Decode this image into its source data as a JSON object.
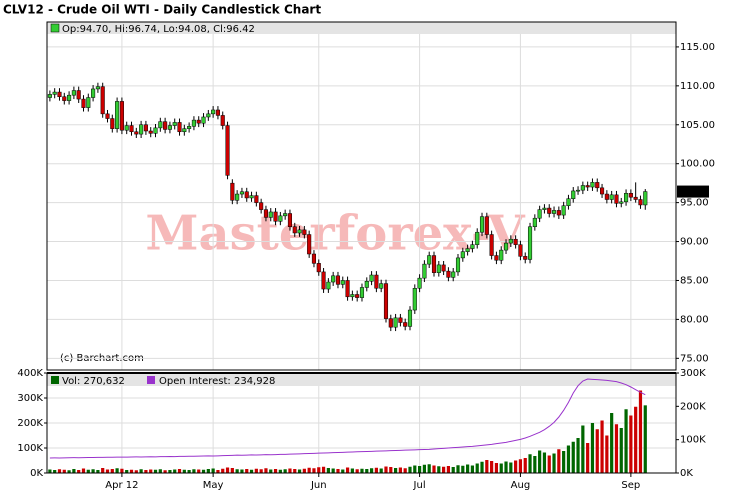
{
  "chart_data": {
    "type": "candlestick",
    "title": "CLV12 - Crude Oil WTI - Daily Candlestick Chart",
    "ohlc_legend": "Op:94.70, Hi:96.74, Lo:94.08, Cl:96.42",
    "last_price_label": "96.42",
    "watermark": "Masterforex-V",
    "credit": "(c) Barchart.com",
    "colors": {
      "up": "#33cc33",
      "down": "#cc0000",
      "volume_up": "#006600",
      "volume_down": "#cc0000"
    },
    "grid": true,
    "xlim": [
      -0.6,
      130.4
    ],
    "xticks": [
      {
        "value": 15,
        "label": "Apr 12"
      },
      {
        "value": 34,
        "label": "May"
      },
      {
        "value": 56,
        "label": "Jun"
      },
      {
        "value": 77,
        "label": "Jul"
      },
      {
        "value": 98,
        "label": "Aug"
      },
      {
        "value": 121,
        "label": "Sep"
      }
    ],
    "ylim": [
      73.5,
      118.2
    ],
    "yticks": [
      {
        "value": 75,
        "label": "75.00"
      },
      {
        "value": 80,
        "label": "80.00"
      },
      {
        "value": 85,
        "label": "85.00"
      },
      {
        "value": 90,
        "label": "90.00"
      },
      {
        "value": 95,
        "label": "95.00"
      },
      {
        "value": 100,
        "label": "100.00"
      },
      {
        "value": 105,
        "label": "105.00"
      },
      {
        "value": 110,
        "label": "110.00"
      },
      {
        "value": 115,
        "label": "115.00"
      }
    ],
    "ohlc": [
      [
        108.5,
        109.4,
        108.0,
        108.9
      ],
      [
        108.9,
        109.7,
        108.4,
        109.2
      ],
      [
        109.2,
        109.7,
        108.1,
        108.6
      ],
      [
        108.6,
        109.1,
        107.6,
        108.1
      ],
      [
        108.1,
        109.3,
        107.6,
        108.8
      ],
      [
        108.8,
        109.9,
        108.3,
        109.4
      ],
      [
        109.4,
        109.9,
        107.8,
        108.3
      ],
      [
        108.3,
        108.8,
        106.7,
        107.2
      ],
      [
        107.2,
        109.0,
        106.7,
        108.5
      ],
      [
        108.5,
        110.1,
        108.0,
        109.6
      ],
      [
        109.6,
        110.4,
        109.1,
        109.9
      ],
      [
        109.9,
        110.4,
        105.9,
        106.4
      ],
      [
        106.4,
        106.9,
        105.3,
        105.8
      ],
      [
        105.8,
        106.3,
        104.0,
        104.5
      ],
      [
        104.5,
        108.5,
        104.0,
        108.0
      ],
      [
        108.0,
        108.5,
        103.8,
        104.3
      ],
      [
        104.3,
        105.4,
        103.8,
        104.9
      ],
      [
        104.9,
        105.4,
        103.6,
        104.1
      ],
      [
        104.1,
        104.6,
        103.3,
        103.8
      ],
      [
        103.8,
        105.5,
        103.3,
        105.0
      ],
      [
        105.0,
        105.5,
        103.7,
        104.2
      ],
      [
        104.2,
        104.7,
        103.4,
        103.9
      ],
      [
        103.9,
        105.1,
        103.4,
        104.6
      ],
      [
        104.6,
        105.9,
        104.1,
        105.4
      ],
      [
        105.4,
        105.9,
        103.9,
        104.4
      ],
      [
        104.4,
        105.4,
        103.9,
        104.9
      ],
      [
        104.9,
        105.8,
        104.4,
        105.3
      ],
      [
        105.3,
        105.8,
        103.6,
        104.1
      ],
      [
        104.1,
        105.0,
        103.6,
        104.5
      ],
      [
        104.5,
        105.3,
        104.0,
        104.8
      ],
      [
        104.8,
        106.1,
        104.3,
        105.6
      ],
      [
        105.6,
        106.1,
        104.7,
        105.2
      ],
      [
        105.2,
        106.5,
        104.7,
        106.0
      ],
      [
        106.0,
        106.9,
        105.5,
        106.4
      ],
      [
        106.4,
        107.4,
        105.9,
        106.9
      ],
      [
        106.9,
        107.4,
        105.7,
        106.2
      ],
      [
        106.2,
        106.7,
        104.4,
        104.9
      ],
      [
        104.9,
        105.4,
        98.0,
        98.5
      ],
      [
        97.5,
        98.0,
        94.8,
        95.3
      ],
      [
        95.3,
        96.6,
        94.8,
        96.1
      ],
      [
        96.1,
        96.9,
        95.6,
        96.4
      ],
      [
        96.4,
        96.9,
        95.1,
        95.6
      ],
      [
        95.6,
        96.4,
        95.1,
        95.9
      ],
      [
        95.9,
        96.4,
        94.5,
        95.0
      ],
      [
        95.0,
        95.5,
        93.6,
        94.1
      ],
      [
        94.1,
        94.6,
        92.6,
        93.1
      ],
      [
        93.1,
        94.3,
        92.6,
        93.8
      ],
      [
        93.8,
        94.3,
        92.1,
        92.6
      ],
      [
        92.6,
        93.8,
        92.1,
        93.3
      ],
      [
        93.3,
        94.1,
        92.8,
        93.6
      ],
      [
        93.6,
        94.1,
        91.4,
        91.9
      ],
      [
        91.9,
        92.4,
        90.6,
        91.1
      ],
      [
        91.1,
        92.0,
        90.6,
        91.5
      ],
      [
        91.5,
        92.0,
        90.4,
        90.9
      ],
      [
        90.9,
        91.4,
        87.9,
        88.4
      ],
      [
        88.4,
        88.9,
        86.7,
        87.2
      ],
      [
        87.2,
        87.7,
        85.6,
        86.1
      ],
      [
        86.1,
        86.6,
        83.4,
        83.9
      ],
      [
        83.9,
        85.3,
        83.4,
        84.8
      ],
      [
        84.8,
        86.1,
        84.3,
        85.6
      ],
      [
        85.6,
        86.1,
        84.0,
        84.5
      ],
      [
        84.5,
        85.5,
        84.0,
        85.0
      ],
      [
        85.0,
        85.5,
        82.4,
        82.9
      ],
      [
        82.9,
        83.7,
        82.4,
        83.2
      ],
      [
        83.2,
        83.7,
        82.3,
        82.8
      ],
      [
        82.8,
        84.6,
        82.3,
        84.1
      ],
      [
        84.1,
        85.4,
        83.6,
        84.9
      ],
      [
        84.9,
        86.2,
        84.4,
        85.7
      ],
      [
        85.7,
        86.2,
        83.5,
        84.0
      ],
      [
        84.0,
        85.1,
        83.5,
        84.6
      ],
      [
        84.6,
        85.1,
        79.6,
        80.1
      ],
      [
        80.1,
        80.6,
        78.5,
        79.0
      ],
      [
        79.0,
        80.7,
        78.5,
        80.2
      ],
      [
        80.2,
        80.7,
        79.1,
        79.6
      ],
      [
        79.6,
        80.1,
        78.6,
        79.1
      ],
      [
        79.1,
        81.7,
        78.6,
        81.2
      ],
      [
        81.2,
        84.5,
        80.7,
        84.0
      ],
      [
        84.0,
        85.8,
        83.5,
        85.3
      ],
      [
        85.3,
        87.6,
        84.8,
        87.1
      ],
      [
        87.1,
        88.7,
        86.6,
        88.2
      ],
      [
        88.2,
        88.7,
        85.5,
        86.0
      ],
      [
        86.0,
        87.5,
        85.5,
        87.0
      ],
      [
        87.0,
        87.5,
        85.7,
        86.2
      ],
      [
        86.2,
        86.7,
        84.9,
        85.4
      ],
      [
        85.4,
        86.6,
        84.9,
        86.1
      ],
      [
        86.1,
        88.4,
        85.6,
        87.9
      ],
      [
        87.9,
        89.2,
        87.4,
        88.7
      ],
      [
        88.7,
        89.6,
        88.2,
        89.1
      ],
      [
        89.1,
        90.1,
        88.6,
        89.6
      ],
      [
        89.6,
        91.7,
        89.1,
        91.2
      ],
      [
        91.2,
        93.7,
        90.7,
        93.2
      ],
      [
        93.2,
        93.7,
        90.4,
        90.9
      ],
      [
        90.9,
        91.4,
        87.7,
        88.2
      ],
      [
        88.2,
        88.7,
        87.1,
        87.6
      ],
      [
        87.6,
        89.4,
        87.1,
        88.9
      ],
      [
        88.9,
        90.3,
        88.4,
        89.8
      ],
      [
        89.8,
        90.8,
        89.3,
        90.3
      ],
      [
        90.3,
        90.8,
        89.1,
        89.6
      ],
      [
        89.6,
        90.1,
        87.6,
        88.1
      ],
      [
        88.1,
        88.6,
        87.2,
        87.7
      ],
      [
        87.7,
        92.4,
        87.2,
        91.9
      ],
      [
        91.9,
        93.5,
        91.4,
        93.0
      ],
      [
        93.0,
        94.6,
        92.5,
        94.1
      ],
      [
        94.1,
        94.8,
        93.6,
        94.3
      ],
      [
        94.3,
        94.8,
        93.1,
        93.6
      ],
      [
        93.6,
        94.5,
        93.1,
        94.0
      ],
      [
        94.0,
        94.5,
        92.9,
        93.4
      ],
      [
        93.4,
        95.1,
        92.9,
        94.6
      ],
      [
        94.6,
        96.0,
        94.1,
        95.5
      ],
      [
        95.5,
        97.0,
        95.0,
        96.5
      ],
      [
        96.5,
        97.1,
        96.0,
        96.6
      ],
      [
        96.6,
        97.7,
        96.1,
        97.2
      ],
      [
        97.2,
        97.7,
        96.5,
        97.0
      ],
      [
        97.0,
        98.1,
        96.5,
        97.6
      ],
      [
        97.6,
        98.1,
        96.4,
        96.9
      ],
      [
        96.9,
        97.4,
        95.6,
        96.1
      ],
      [
        96.1,
        96.6,
        94.9,
        95.4
      ],
      [
        95.4,
        96.5,
        94.9,
        96.0
      ],
      [
        96.0,
        96.5,
        94.4,
        94.9
      ],
      [
        94.9,
        95.6,
        94.4,
        95.1
      ],
      [
        95.1,
        96.7,
        94.6,
        96.2
      ],
      [
        96.2,
        96.7,
        95.2,
        95.7
      ],
      [
        95.7,
        97.6,
        95.0,
        95.4
      ],
      [
        95.4,
        95.9,
        94.2,
        94.7
      ],
      [
        94.7,
        96.74,
        94.08,
        96.42
      ]
    ],
    "volume": {
      "legend": "Vol: 270,632",
      "ylim": [
        0,
        400000
      ],
      "yticks": [
        {
          "value": 0,
          "label": "0K"
        },
        {
          "value": 100000,
          "label": "100K"
        },
        {
          "value": 200000,
          "label": "200K"
        },
        {
          "value": 300000,
          "label": "300K"
        },
        {
          "value": 400000,
          "label": "400K"
        }
      ],
      "values": [
        14000,
        12000,
        15000,
        13000,
        11000,
        16000,
        12000,
        18000,
        13000,
        15000,
        12000,
        20000,
        14000,
        16000,
        19000,
        17000,
        12000,
        13000,
        11000,
        15000,
        12000,
        14000,
        13000,
        15000,
        11000,
        12000,
        14000,
        16000,
        13000,
        12000,
        15000,
        14000,
        13000,
        16000,
        18000,
        12000,
        17000,
        22000,
        20000,
        15000,
        14000,
        16000,
        13000,
        17000,
        15000,
        19000,
        14000,
        16000,
        13000,
        15000,
        18000,
        16000,
        14000,
        17000,
        21000,
        19000,
        23000,
        25000,
        20000,
        18000,
        16000,
        14000,
        22000,
        18000,
        15000,
        17000,
        16000,
        19000,
        21000,
        18000,
        26000,
        24000,
        20000,
        22000,
        19000,
        25000,
        30000,
        28000,
        33000,
        35000,
        30000,
        27000,
        25000,
        28000,
        24000,
        31000,
        29000,
        34000,
        30000,
        38000,
        45000,
        52000,
        48000,
        40000,
        38000,
        46000,
        42000,
        50000,
        55000,
        60000,
        75000,
        68000,
        90000,
        82000,
        70000,
        78000,
        95000,
        88000,
        110000,
        125000,
        140000,
        190000,
        120000,
        200000,
        175000,
        210000,
        150000,
        240000,
        195000,
        180000,
        255000,
        230000,
        265000,
        330000,
        270632
      ]
    },
    "open_interest": {
      "legend": "Open Interest: 234,928",
      "color": "#9933cc",
      "y2lim": [
        0,
        300000
      ],
      "y2ticks": [
        {
          "value": 0,
          "label": "0K"
        },
        {
          "value": 100000,
          "label": "100K"
        },
        {
          "value": 200000,
          "label": "200K"
        },
        {
          "value": 300000,
          "label": "300K"
        }
      ],
      "values": [
        45000,
        45200,
        45100,
        45500,
        45800,
        46000,
        45900,
        46200,
        46500,
        46400,
        46800,
        47000,
        47300,
        47100,
        47500,
        47800,
        47600,
        48000,
        48200,
        48100,
        48400,
        48700,
        48500,
        49000,
        49200,
        49500,
        49300,
        49800,
        50000,
        50300,
        50100,
        50600,
        50900,
        51200,
        51000,
        51500,
        52000,
        52400,
        53000,
        53500,
        53300,
        53800,
        54200,
        54000,
        54500,
        55000,
        54800,
        55300,
        55800,
        56000,
        56500,
        57000,
        57400,
        58000,
        58500,
        59000,
        59600,
        60000,
        60500,
        61000,
        61500,
        62000,
        62500,
        63000,
        63600,
        64000,
        64500,
        65000,
        65500,
        66000,
        66500,
        67000,
        67500,
        68000,
        68600,
        69000,
        69500,
        70000,
        70500,
        71000,
        72000,
        73000,
        74000,
        75000,
        76000,
        77000,
        78000,
        79000,
        80000,
        81500,
        83000,
        84500,
        86000,
        88000,
        90000,
        92000,
        95000,
        98000,
        101000,
        105000,
        110000,
        116000,
        122000,
        130000,
        140000,
        152000,
        168000,
        188000,
        212000,
        240000,
        262000,
        276000,
        282000,
        281000,
        280000,
        279000,
        278000,
        276000,
        274000,
        270000,
        265000,
        258000,
        250000,
        242000,
        234928
      ]
    }
  }
}
